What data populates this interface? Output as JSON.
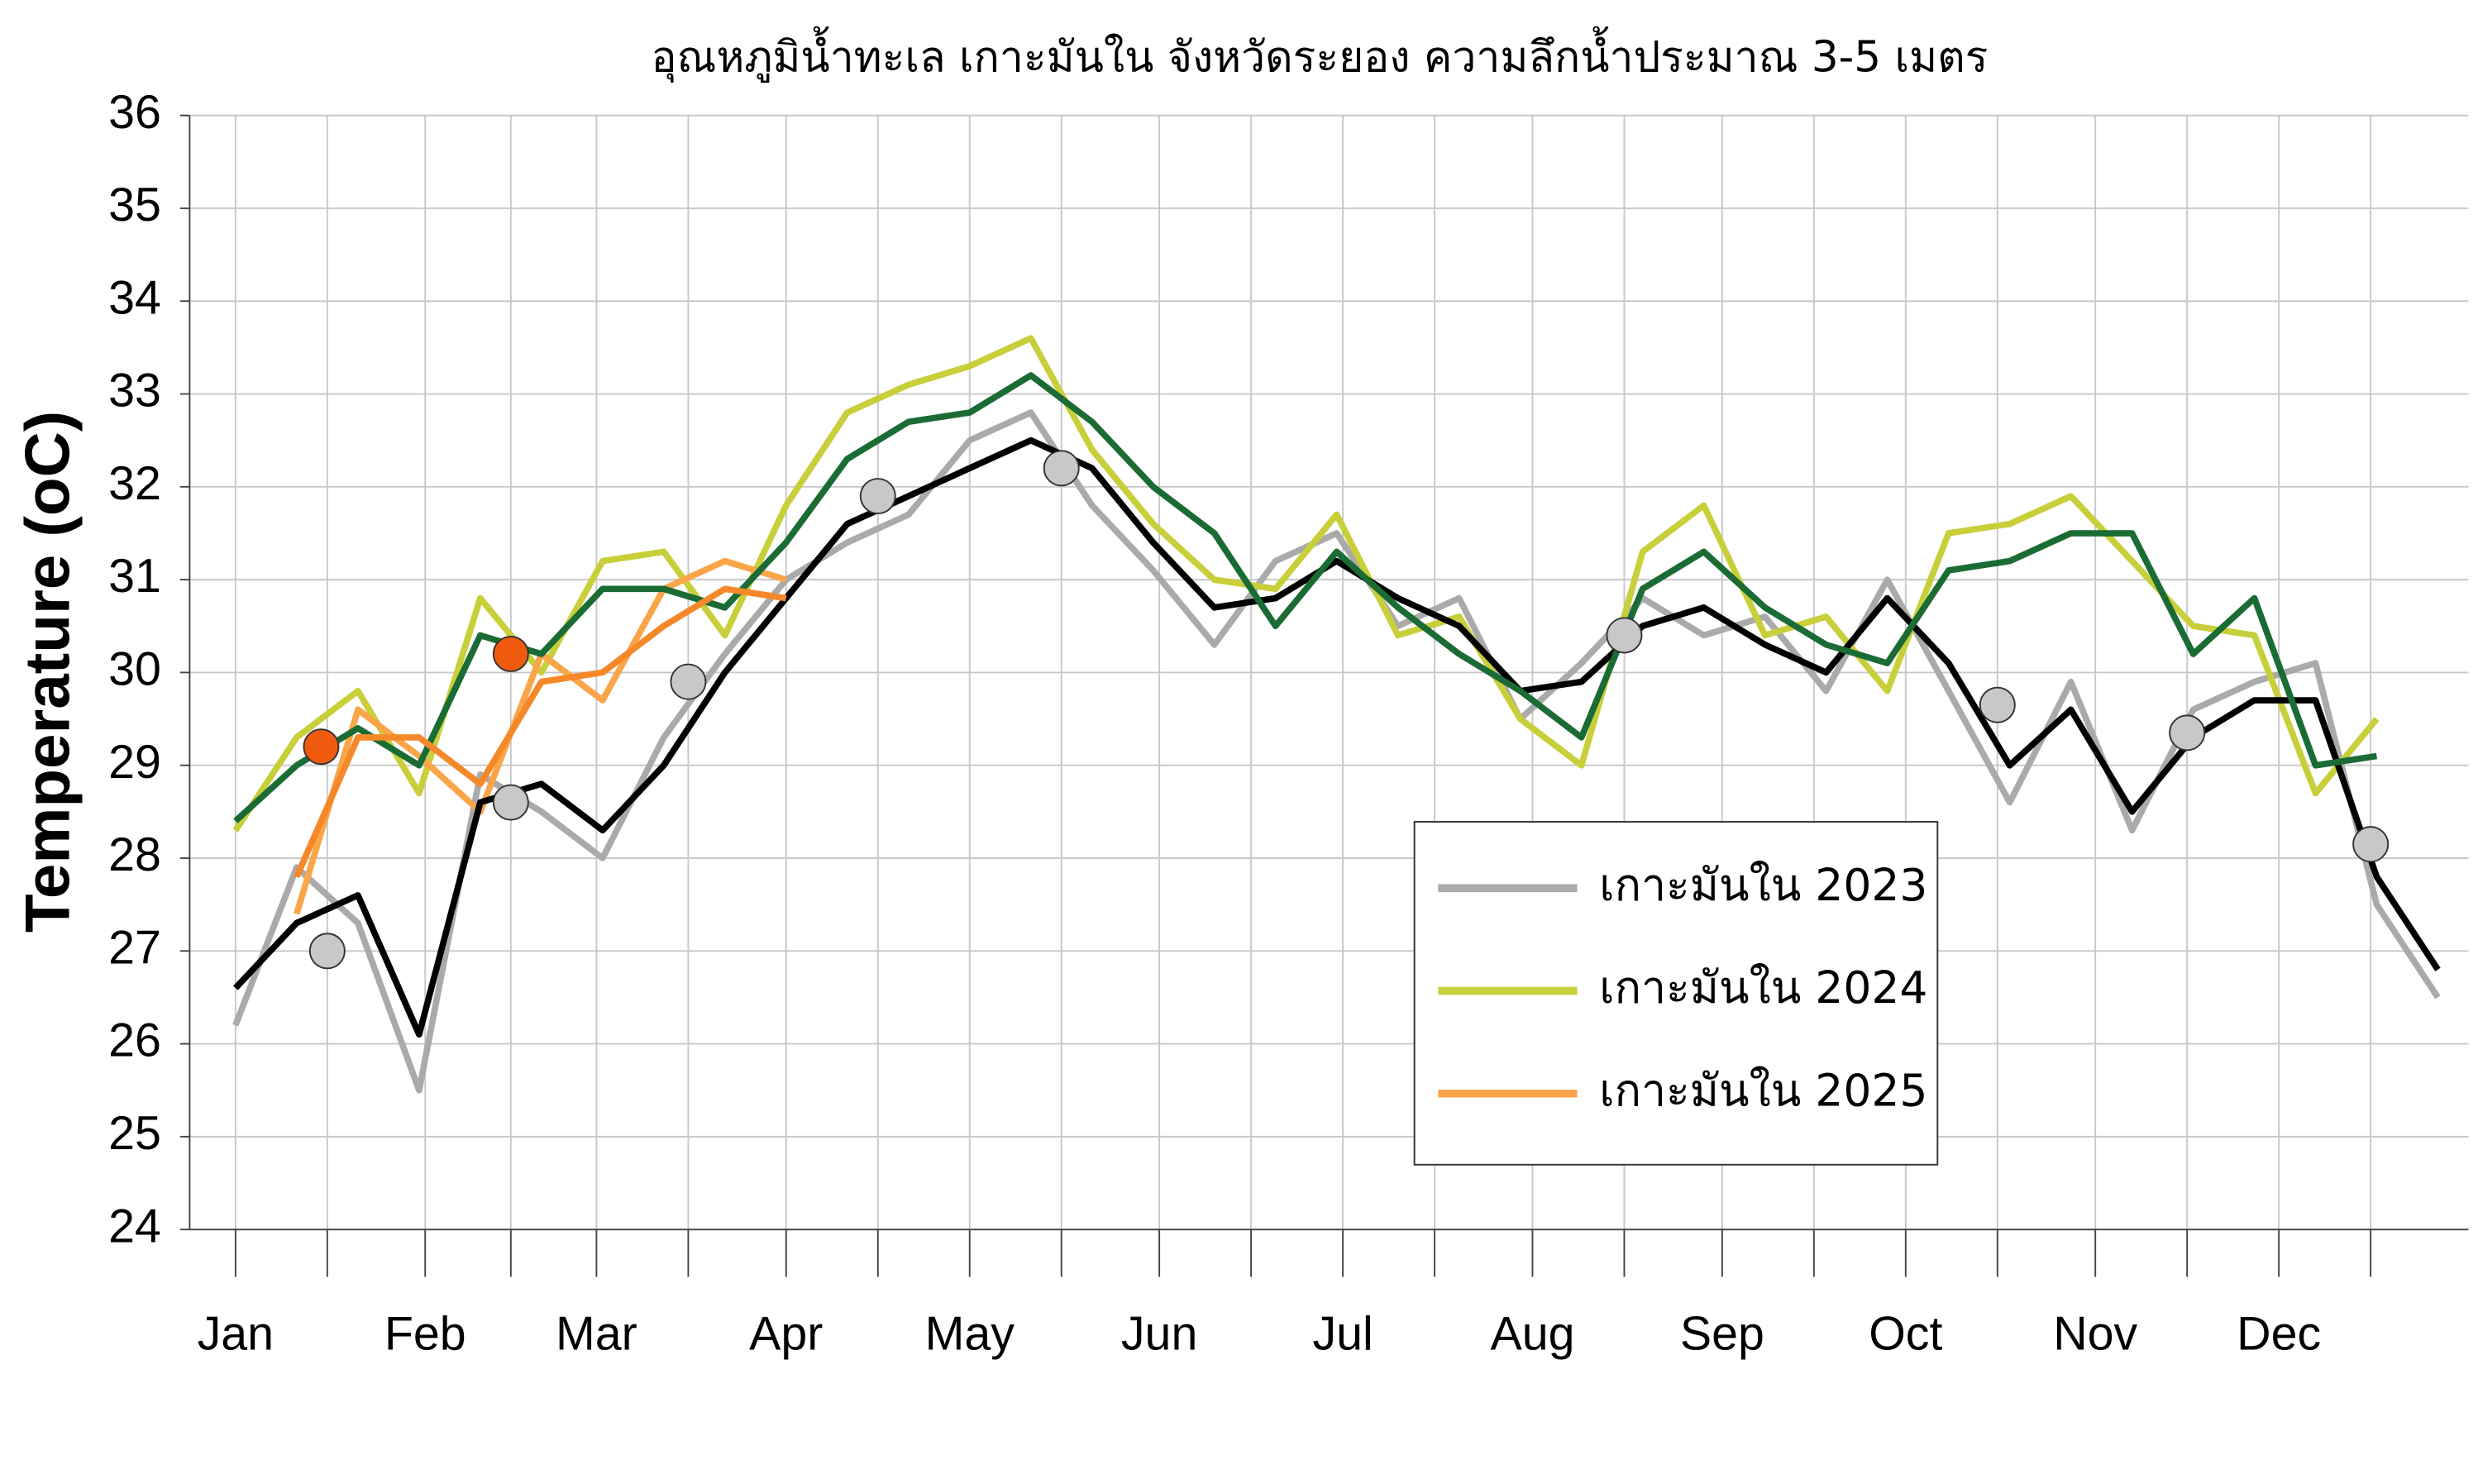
{
  "chart_data": {
    "type": "line",
    "title": "อุณหภูมิน้ำทะเล เกาะมันใน จังหวัดระยอง ความลึกน้ำประมาณ 3-5 เมตร",
    "y_label": "Temperature (oC)",
    "x": [
      0,
      10,
      20,
      30,
      40,
      50,
      60,
      70,
      80,
      90,
      100,
      110,
      120,
      130,
      140,
      150,
      160,
      170,
      180,
      190,
      200,
      210,
      220,
      230,
      240,
      250,
      260,
      270,
      280,
      290,
      300,
      310,
      320,
      330,
      340,
      350,
      360
    ],
    "xlim": [
      -7.5,
      365
    ],
    "ylim": [
      24,
      36
    ],
    "yticks": [
      24,
      25,
      26,
      27,
      28,
      29,
      30,
      31,
      32,
      33,
      34,
      35,
      36
    ],
    "xticks": [
      {
        "value": 0,
        "label": "Jan"
      },
      {
        "value": 31,
        "label": "Feb"
      },
      {
        "value": 59,
        "label": "Mar"
      },
      {
        "value": 90,
        "label": "Apr"
      },
      {
        "value": 120,
        "label": "May"
      },
      {
        "value": 151,
        "label": "Jun"
      },
      {
        "value": 181,
        "label": "Jul"
      },
      {
        "value": 212,
        "label": "Aug"
      },
      {
        "value": 243,
        "label": "Sep"
      },
      {
        "value": 273,
        "label": "Oct"
      },
      {
        "value": 304,
        "label": "Nov"
      },
      {
        "value": 334,
        "label": "Dec"
      }
    ],
    "xminor": [
      15,
      45,
      74,
      105,
      135,
      166,
      196,
      227,
      258,
      288,
      319,
      349
    ],
    "grid": true,
    "legend": "lower right",
    "series": [
      {
        "name": "เกาะมันใน 2023",
        "color": "#aaaaaa",
        "values": [
          26.2,
          27.9,
          27.3,
          25.5,
          28.9,
          28.5,
          28.0,
          29.3,
          30.2,
          31.0,
          31.4,
          31.7,
          32.5,
          32.8,
          31.8,
          31.1,
          30.3,
          31.2,
          31.5,
          30.5,
          30.8,
          29.5,
          30.1,
          30.8,
          30.4,
          30.6,
          29.8,
          31.0,
          29.8,
          28.6,
          29.9,
          28.3,
          29.6,
          29.9,
          30.1,
          27.5,
          26.5
        ],
        "trend": {
          "color": "#000000",
          "values": [
            26.6,
            27.3,
            27.6,
            26.1,
            28.6,
            28.8,
            28.3,
            29.0,
            30.0,
            30.8,
            31.6,
            31.9,
            32.2,
            32.5,
            32.2,
            31.4,
            30.7,
            30.8,
            31.2,
            30.8,
            30.5,
            29.8,
            29.9,
            30.5,
            30.7,
            30.3,
            30.0,
            30.8,
            30.1,
            29.0,
            29.6,
            28.5,
            29.3,
            29.7,
            29.7,
            27.8,
            26.8
          ]
        },
        "markers": {
          "color": "#c8c8c8",
          "x": [
            15,
            45,
            74,
            105,
            135,
            227,
            288,
            319,
            349
          ],
          "values": [
            27.0,
            28.6,
            29.9,
            31.9,
            32.2,
            30.4,
            29.65,
            29.35,
            28.15
          ]
        }
      },
      {
        "name": "เกาะมันใน 2024",
        "color": "#c8cf3a",
        "values": [
          28.3,
          29.3,
          29.8,
          28.7,
          30.8,
          30.0,
          31.2,
          31.3,
          30.4,
          31.8,
          32.8,
          33.1,
          33.3,
          33.6,
          32.4,
          31.6,
          31.0,
          30.9,
          31.7,
          30.4,
          30.6,
          29.5,
          29.0,
          31.3,
          31.8,
          30.4,
          30.6,
          29.8,
          31.5,
          31.6,
          31.9,
          31.2,
          30.5,
          30.4,
          28.7,
          29.5,
          null
        ],
        "trend": {
          "color": "#1a6b34",
          "values": [
            28.4,
            29.0,
            29.4,
            29.0,
            30.4,
            30.2,
            30.9,
            30.9,
            30.7,
            31.4,
            32.3,
            32.7,
            32.8,
            33.2,
            32.7,
            32.0,
            31.5,
            30.5,
            31.3,
            30.7,
            30.2,
            29.8,
            29.3,
            30.9,
            31.3,
            30.7,
            30.3,
            30.1,
            31.1,
            31.2,
            31.5,
            31.5,
            30.2,
            30.8,
            29.0,
            29.1,
            null
          ]
        }
      },
      {
        "name": "เกาะมันใน 2025",
        "color": "#f9a54a",
        "values": [
          null,
          27.4,
          29.6,
          29.1,
          28.5,
          30.2,
          29.7,
          30.9,
          31.2,
          31.0,
          null,
          null,
          null,
          null,
          null,
          null,
          null,
          null,
          null,
          null,
          null,
          null,
          null,
          null,
          null,
          null,
          null,
          null,
          null,
          null,
          null,
          null,
          null,
          null,
          null,
          null,
          null
        ],
        "trend": {
          "color": "#f5892a",
          "values": [
            null,
            27.8,
            29.3,
            29.3,
            28.8,
            29.9,
            30.0,
            30.5,
            30.9,
            30.8,
            null,
            null,
            null,
            null,
            null,
            null,
            null,
            null,
            null,
            null,
            null,
            null,
            null,
            null,
            null,
            null,
            null,
            null,
            null,
            null,
            null,
            null,
            null,
            null,
            null,
            null,
            null
          ]
        },
        "markers": {
          "color": "#f05a0f",
          "x": [
            14,
            45
          ],
          "values": [
            29.2,
            30.2
          ]
        }
      }
    ]
  }
}
